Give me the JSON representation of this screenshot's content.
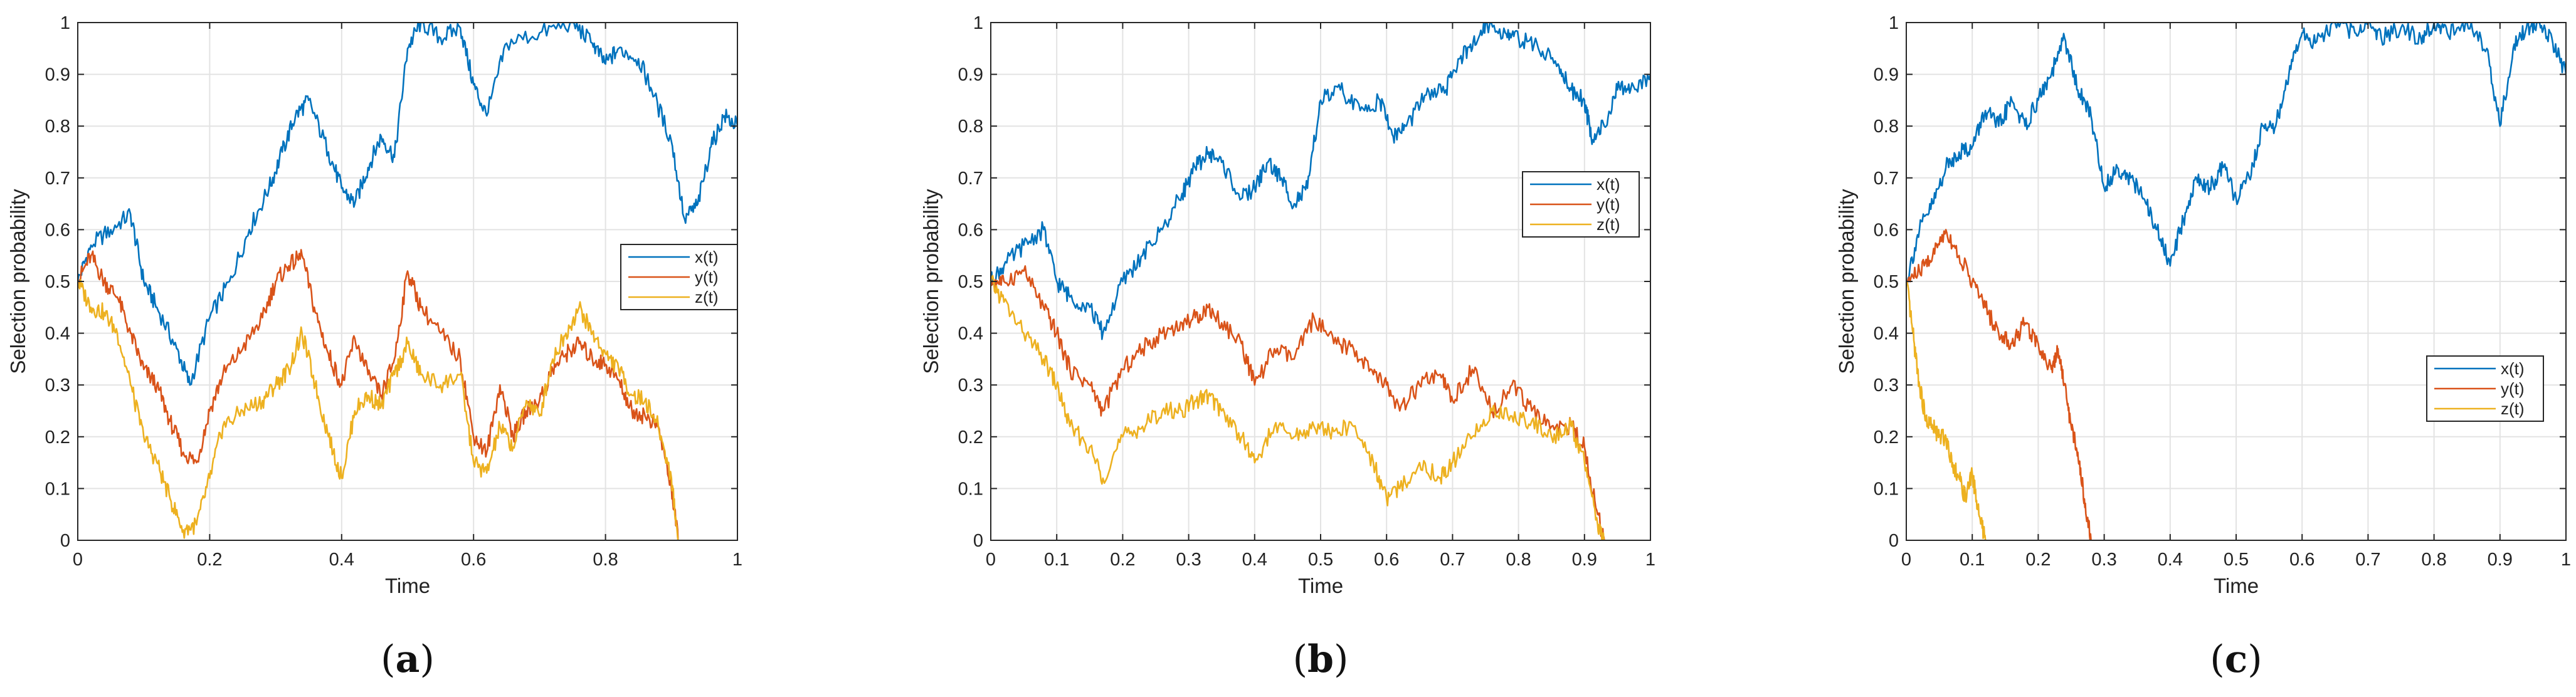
{
  "colors": {
    "x": "#0072BD",
    "y": "#D95319",
    "z": "#EDB120",
    "grid": "#e3e3e3",
    "axis": "#262626"
  },
  "chart_data": [
    {
      "type": "line",
      "panel_label": "(a)",
      "xlabel": "Time",
      "ylabel": "Selection probability",
      "xlim": [
        0,
        1
      ],
      "ylim": [
        0,
        1
      ],
      "xticks": [
        "0",
        "0.2",
        "0.4",
        "0.6",
        "0.8",
        "1"
      ],
      "xtick_values": [
        0,
        0.2,
        0.4,
        0.6,
        0.8,
        1
      ],
      "yticks": [
        "0",
        "0.1",
        "0.2",
        "0.3",
        "0.4",
        "0.5",
        "0.6",
        "0.7",
        "0.8",
        "0.9",
        "1"
      ],
      "grid": true,
      "legend_position": "right",
      "series": [
        {
          "name": "x(t)",
          "color": "#0072BD",
          "x": [
            0,
            0.02,
            0.05,
            0.08,
            0.1,
            0.12,
            0.15,
            0.17,
            0.2,
            0.23,
            0.26,
            0.29,
            0.31,
            0.33,
            0.35,
            0.38,
            0.4,
            0.42,
            0.44,
            0.46,
            0.48,
            0.5,
            0.52,
            0.55,
            0.58,
            0.6,
            0.62,
            0.65,
            0.7,
            0.75,
            0.78,
            0.8,
            0.82,
            0.85,
            0.87,
            0.9,
            0.92,
            0.94,
            0.96,
            0.98,
            1.0
          ],
          "y": [
            0.5,
            0.57,
            0.6,
            0.63,
            0.5,
            0.45,
            0.37,
            0.3,
            0.43,
            0.5,
            0.6,
            0.68,
            0.75,
            0.82,
            0.85,
            0.75,
            0.68,
            0.65,
            0.72,
            0.78,
            0.74,
            0.95,
            1.0,
            0.97,
            0.99,
            0.88,
            0.82,
            0.96,
            0.98,
            1.0,
            0.96,
            0.92,
            0.95,
            0.93,
            0.87,
            0.77,
            0.62,
            0.65,
            0.76,
            0.82,
            0.8
          ]
        },
        {
          "name": "y(t)",
          "color": "#D95319",
          "x": [
            0,
            0.02,
            0.04,
            0.06,
            0.08,
            0.1,
            0.12,
            0.14,
            0.16,
            0.18,
            0.2,
            0.22,
            0.25,
            0.28,
            0.3,
            0.32,
            0.34,
            0.36,
            0.38,
            0.4,
            0.42,
            0.44,
            0.46,
            0.48,
            0.5,
            0.52,
            0.55,
            0.58,
            0.6,
            0.62,
            0.64,
            0.66,
            0.68,
            0.7,
            0.72,
            0.74,
            0.76,
            0.78,
            0.8,
            0.82,
            0.84,
            0.86,
            0.88,
            0.9,
            0.91
          ],
          "y": [
            0.5,
            0.55,
            0.5,
            0.47,
            0.4,
            0.33,
            0.3,
            0.23,
            0.17,
            0.15,
            0.25,
            0.32,
            0.37,
            0.43,
            0.5,
            0.53,
            0.55,
            0.44,
            0.36,
            0.3,
            0.39,
            0.32,
            0.28,
            0.35,
            0.52,
            0.45,
            0.4,
            0.35,
            0.2,
            0.17,
            0.3,
            0.2,
            0.25,
            0.27,
            0.33,
            0.36,
            0.38,
            0.35,
            0.34,
            0.31,
            0.25,
            0.24,
            0.22,
            0.1,
            0.0
          ]
        },
        {
          "name": "z(t)",
          "color": "#EDB120",
          "x": [
            0,
            0.02,
            0.04,
            0.06,
            0.08,
            0.1,
            0.12,
            0.14,
            0.16,
            0.18,
            0.2,
            0.22,
            0.25,
            0.28,
            0.3,
            0.32,
            0.34,
            0.36,
            0.38,
            0.4,
            0.42,
            0.44,
            0.46,
            0.48,
            0.5,
            0.52,
            0.55,
            0.58,
            0.6,
            0.62,
            0.64,
            0.66,
            0.68,
            0.7,
            0.72,
            0.74,
            0.76,
            0.78,
            0.8,
            0.82,
            0.84,
            0.86,
            0.88,
            0.9,
            0.91
          ],
          "y": [
            0.5,
            0.45,
            0.44,
            0.4,
            0.3,
            0.2,
            0.15,
            0.08,
            0.02,
            0.03,
            0.12,
            0.22,
            0.25,
            0.27,
            0.3,
            0.33,
            0.4,
            0.3,
            0.2,
            0.12,
            0.25,
            0.28,
            0.26,
            0.32,
            0.38,
            0.32,
            0.3,
            0.32,
            0.15,
            0.13,
            0.22,
            0.18,
            0.27,
            0.24,
            0.35,
            0.4,
            0.45,
            0.4,
            0.36,
            0.33,
            0.28,
            0.27,
            0.22,
            0.12,
            0.0
          ]
        }
      ]
    },
    {
      "type": "line",
      "panel_label": "(b)",
      "xlabel": "Time",
      "ylabel": "Selection probability",
      "xlim": [
        0,
        1
      ],
      "ylim": [
        0,
        1
      ],
      "xticks": [
        "0",
        "0.1",
        "0.2",
        "0.3",
        "0.4",
        "0.5",
        "0.6",
        "0.7",
        "0.8",
        "0.9",
        "1"
      ],
      "xtick_values": [
        0,
        0.1,
        0.2,
        0.3,
        0.4,
        0.5,
        0.6,
        0.7,
        0.8,
        0.9,
        1
      ],
      "yticks": [
        "0",
        "0.1",
        "0.2",
        "0.3",
        "0.4",
        "0.5",
        "0.6",
        "0.7",
        "0.8",
        "0.9",
        "1"
      ],
      "grid": true,
      "legend_position": "top-right",
      "series": [
        {
          "name": "x(t)",
          "color": "#0072BD",
          "x": [
            0,
            0.02,
            0.05,
            0.08,
            0.1,
            0.12,
            0.15,
            0.17,
            0.2,
            0.23,
            0.26,
            0.29,
            0.31,
            0.33,
            0.35,
            0.38,
            0.4,
            0.42,
            0.44,
            0.46,
            0.48,
            0.5,
            0.53,
            0.56,
            0.59,
            0.61,
            0.63,
            0.66,
            0.69,
            0.71,
            0.73,
            0.75,
            0.78,
            0.8,
            0.83,
            0.86,
            0.88,
            0.9,
            0.91,
            0.93,
            0.95,
            0.97,
            1.0
          ],
          "y": [
            0.5,
            0.53,
            0.57,
            0.6,
            0.5,
            0.47,
            0.45,
            0.4,
            0.5,
            0.55,
            0.6,
            0.67,
            0.72,
            0.75,
            0.73,
            0.66,
            0.68,
            0.73,
            0.7,
            0.65,
            0.68,
            0.85,
            0.87,
            0.83,
            0.85,
            0.78,
            0.8,
            0.86,
            0.87,
            0.93,
            0.95,
            1.0,
            0.98,
            0.97,
            0.95,
            0.92,
            0.87,
            0.85,
            0.78,
            0.8,
            0.87,
            0.87,
            0.9
          ]
        },
        {
          "name": "y(t)",
          "color": "#D95319",
          "x": [
            0,
            0.02,
            0.05,
            0.08,
            0.1,
            0.12,
            0.15,
            0.17,
            0.2,
            0.23,
            0.26,
            0.29,
            0.31,
            0.33,
            0.35,
            0.38,
            0.4,
            0.43,
            0.46,
            0.49,
            0.52,
            0.55,
            0.58,
            0.6,
            0.62,
            0.65,
            0.68,
            0.7,
            0.73,
            0.76,
            0.79,
            0.82,
            0.85,
            0.88,
            0.9,
            0.92,
            0.93
          ],
          "y": [
            0.5,
            0.5,
            0.52,
            0.45,
            0.4,
            0.33,
            0.3,
            0.25,
            0.33,
            0.37,
            0.4,
            0.42,
            0.43,
            0.45,
            0.42,
            0.38,
            0.3,
            0.37,
            0.35,
            0.43,
            0.38,
            0.37,
            0.32,
            0.3,
            0.25,
            0.3,
            0.32,
            0.27,
            0.33,
            0.25,
            0.3,
            0.25,
            0.22,
            0.22,
            0.18,
            0.05,
            0.0
          ]
        },
        {
          "name": "z(t)",
          "color": "#EDB120",
          "x": [
            0,
            0.02,
            0.05,
            0.08,
            0.1,
            0.12,
            0.15,
            0.17,
            0.2,
            0.23,
            0.26,
            0.29,
            0.31,
            0.33,
            0.35,
            0.38,
            0.4,
            0.43,
            0.46,
            0.49,
            0.52,
            0.55,
            0.58,
            0.6,
            0.62,
            0.65,
            0.68,
            0.7,
            0.73,
            0.76,
            0.79,
            0.82,
            0.85,
            0.88,
            0.9,
            0.92,
            0.93
          ],
          "y": [
            0.5,
            0.46,
            0.4,
            0.35,
            0.3,
            0.22,
            0.18,
            0.12,
            0.2,
            0.22,
            0.25,
            0.25,
            0.27,
            0.28,
            0.25,
            0.2,
            0.15,
            0.22,
            0.2,
            0.22,
            0.21,
            0.22,
            0.15,
            0.08,
            0.1,
            0.15,
            0.12,
            0.15,
            0.2,
            0.25,
            0.24,
            0.23,
            0.2,
            0.22,
            0.15,
            0.03,
            0.0
          ]
        }
      ]
    },
    {
      "type": "line",
      "panel_label": "(c)",
      "xlabel": "Time",
      "ylabel": "Selection probability",
      "xlim": [
        0,
        1
      ],
      "ylim": [
        0,
        1
      ],
      "xticks": [
        "0",
        "0.1",
        "0.2",
        "0.3",
        "0.4",
        "0.5",
        "0.6",
        "0.7",
        "0.8",
        "0.9",
        "1"
      ],
      "xtick_values": [
        0,
        0.1,
        0.2,
        0.3,
        0.4,
        0.5,
        0.6,
        0.7,
        0.8,
        0.9,
        1
      ],
      "yticks": [
        "0",
        "0.1",
        "0.2",
        "0.3",
        "0.4",
        "0.5",
        "0.6",
        "0.7",
        "0.8",
        "0.9",
        "1"
      ],
      "grid": true,
      "legend_position": "bottom-right",
      "series": [
        {
          "name": "x(t)",
          "color": "#0072BD",
          "x": [
            0,
            0.02,
            0.04,
            0.06,
            0.08,
            0.1,
            0.12,
            0.14,
            0.16,
            0.18,
            0.2,
            0.22,
            0.24,
            0.26,
            0.28,
            0.3,
            0.32,
            0.34,
            0.36,
            0.38,
            0.4,
            0.42,
            0.44,
            0.46,
            0.48,
            0.5,
            0.52,
            0.54,
            0.56,
            0.58,
            0.6,
            0.62,
            0.65,
            0.68,
            0.7,
            0.72,
            0.75,
            0.78,
            0.8,
            0.82,
            0.85,
            0.88,
            0.9,
            0.92,
            0.94,
            0.96,
            0.98,
            1.0
          ],
          "y": [
            0.5,
            0.6,
            0.65,
            0.72,
            0.75,
            0.76,
            0.83,
            0.8,
            0.85,
            0.8,
            0.85,
            0.9,
            0.97,
            0.87,
            0.82,
            0.68,
            0.72,
            0.7,
            0.66,
            0.6,
            0.53,
            0.62,
            0.7,
            0.68,
            0.72,
            0.66,
            0.7,
            0.8,
            0.8,
            0.9,
            0.98,
            0.96,
            1.0,
            0.98,
            1.0,
            0.97,
            0.99,
            0.97,
            1.0,
            0.98,
            1.0,
            0.95,
            0.8,
            0.95,
            0.99,
            1.0,
            0.96,
            0.9
          ]
        },
        {
          "name": "y(t)",
          "color": "#D95319",
          "x": [
            0,
            0.02,
            0.04,
            0.06,
            0.08,
            0.1,
            0.12,
            0.14,
            0.16,
            0.18,
            0.2,
            0.22,
            0.23,
            0.24,
            0.25,
            0.26,
            0.27,
            0.28
          ],
          "y": [
            0.5,
            0.52,
            0.55,
            0.6,
            0.55,
            0.5,
            0.45,
            0.4,
            0.38,
            0.42,
            0.38,
            0.33,
            0.37,
            0.3,
            0.22,
            0.17,
            0.08,
            0.0
          ]
        },
        {
          "name": "z(t)",
          "color": "#EDB120",
          "x": [
            0,
            0.01,
            0.02,
            0.03,
            0.04,
            0.05,
            0.06,
            0.07,
            0.08,
            0.09,
            0.1,
            0.11,
            0.12
          ],
          "y": [
            0.5,
            0.4,
            0.3,
            0.23,
            0.22,
            0.2,
            0.2,
            0.15,
            0.12,
            0.08,
            0.13,
            0.05,
            0.0
          ]
        }
      ]
    }
  ]
}
